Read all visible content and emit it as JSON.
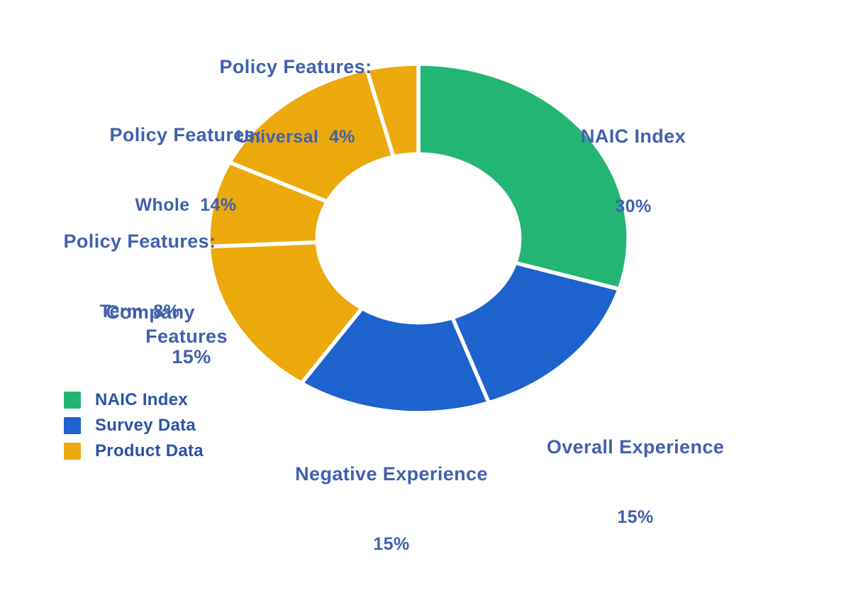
{
  "chart_data": {
    "type": "pie",
    "variant": "donut",
    "unit": "percent",
    "start_angle_deg": 0,
    "direction": "clockwise",
    "donut_hole_ratio": 0.482,
    "legend_position": "bottom-left",
    "background_color": "#FFFFFF",
    "colors": {
      "naic": "#22B573",
      "survey": "#1D62CD",
      "product": "#ECA90B"
    },
    "series": [
      {
        "label": "NAIC Index",
        "value": 30,
        "group": "NAIC Index",
        "color": "#22B573"
      },
      {
        "label": "Overall Experience",
        "value": 15,
        "group": "Survey Data",
        "color": "#1D62CD"
      },
      {
        "label": "Negative Experience",
        "value": 15,
        "group": "Survey Data",
        "color": "#1D62CD"
      },
      {
        "label": "Company Features",
        "value": 15,
        "group": "Product Data",
        "color": "#ECA90B"
      },
      {
        "label": "Policy Features: Term",
        "value": 8,
        "group": "Product Data",
        "color": "#ECA90B"
      },
      {
        "label": "Policy Features: Whole",
        "value": 14,
        "group": "Product Data",
        "color": "#ECA90B"
      },
      {
        "label": "Policy Features: Universal",
        "value": 4,
        "group": "Product Data",
        "color": "#ECA90B"
      }
    ]
  },
  "annotations": {
    "universal": {
      "l1": "Policy Features:",
      "l2": "Universal  4%"
    },
    "whole": {
      "l1": "Policy Features:",
      "l2": "Whole  14%"
    },
    "term": {
      "l1": "Policy Features:",
      "l2": "Term  8%"
    },
    "naic": {
      "l1": "NAIC Index",
      "l2": "30%"
    },
    "overall": {
      "l1": "Overall Experience",
      "l2": "15%"
    },
    "negative": {
      "l1": "Negative Experience",
      "l2": "15%"
    },
    "company": {
      "l1": "Company",
      "l2": "Features",
      "l3": "15%"
    }
  },
  "legend": {
    "items": [
      {
        "label": "NAIC Index",
        "color": "#22B573"
      },
      {
        "label": "Survey Data",
        "color": "#1D62CD"
      },
      {
        "label": "Product Data",
        "color": "#ECA90B"
      }
    ]
  },
  "text_colors": {
    "slice_labels": "#4161AE",
    "legend_labels": "#2A52A8"
  }
}
